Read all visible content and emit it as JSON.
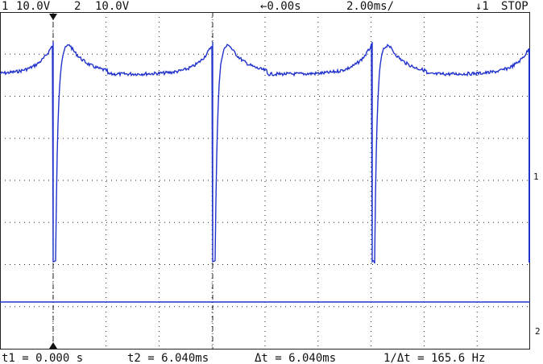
{
  "header": {
    "ch1_label": "1",
    "ch1_scale": "10.0V",
    "ch2_label": "2",
    "ch2_scale": "10.0V",
    "delay": "←0.00s",
    "timebase": "2.00ms/",
    "trigger": "↓1",
    "status": "STOP"
  },
  "footer": {
    "t1": "t1 = 0.000 s",
    "t2": "t2 = 6.040ms",
    "dt": "Δt = 6.040ms",
    "inv_dt": "1/Δt = 165.6 Hz"
  },
  "markers": {
    "ch1": "1",
    "ch2": "2"
  }
}
